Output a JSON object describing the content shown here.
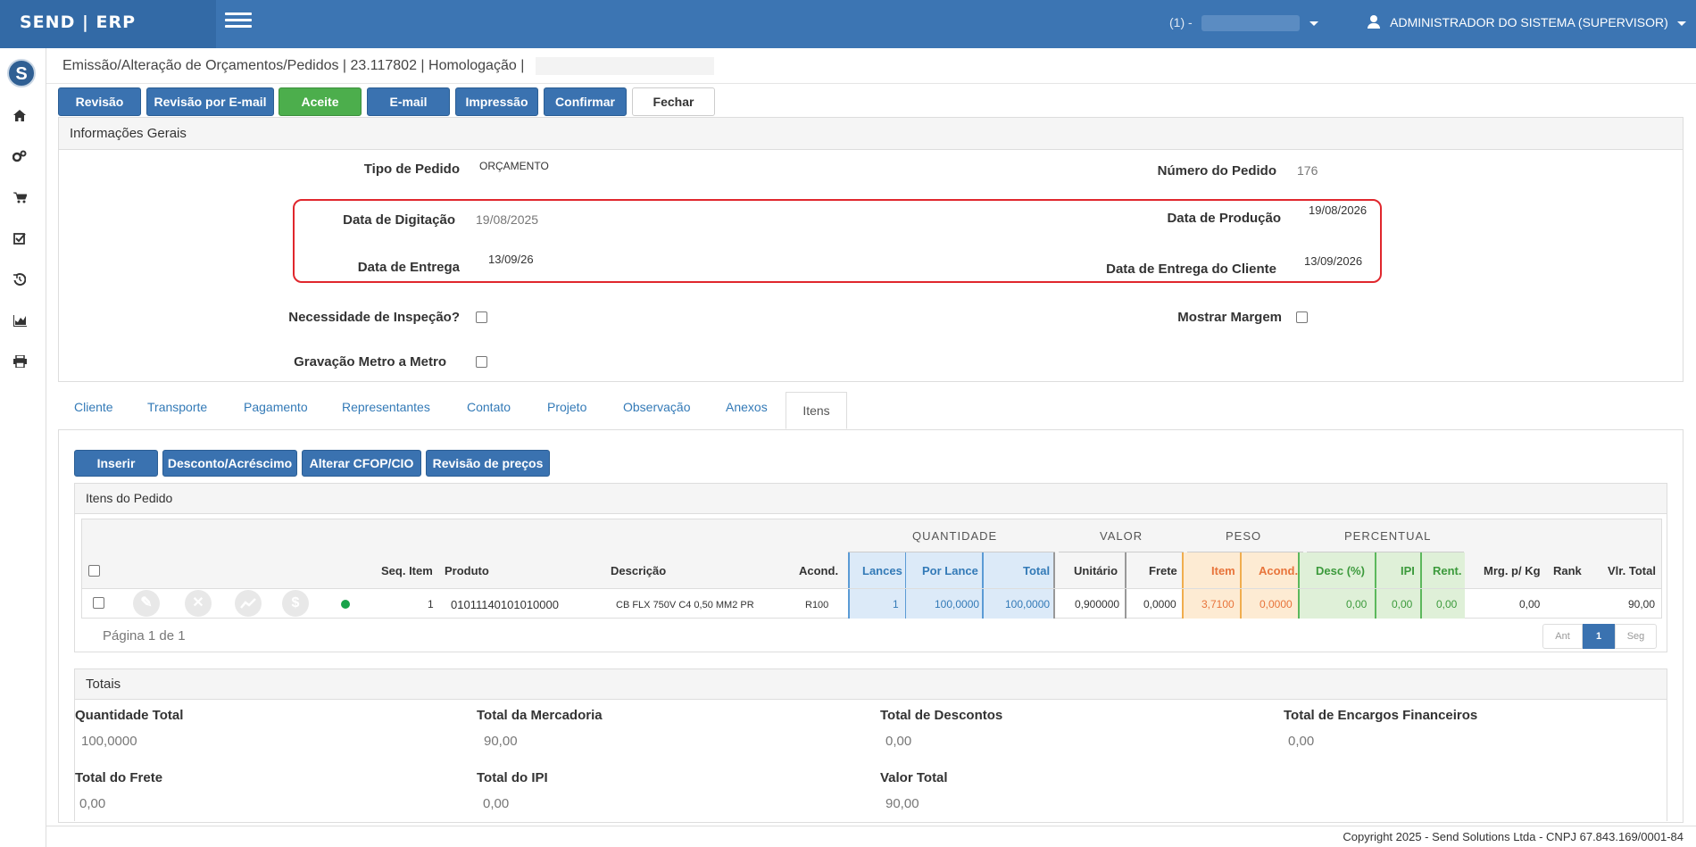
{
  "app": {
    "brand": "SEND | ERP"
  },
  "topbar": {
    "company": "(1) -",
    "user": "ADMINISTRADOR DO SISTEMA (SUPERVISOR)"
  },
  "sidebar": {
    "logo": "S",
    "items": [
      "home-icon",
      "cogs-icon",
      "cart-icon",
      "check-square-icon",
      "history-icon",
      "chart-icon",
      "print-icon"
    ]
  },
  "page": {
    "title": "Emissão/Alteração de Orçamentos/Pedidos | 23.117802 | Homologação |"
  },
  "toolbar": {
    "revisao": "Revisão",
    "revisao_email": "Revisão por E-mail",
    "aceite": "Aceite",
    "email": "E-mail",
    "impressao": "Impressão",
    "confirmar": "Confirmar",
    "fechar": "Fechar"
  },
  "info": {
    "heading": "Informações Gerais",
    "tipo_pedido_label": "Tipo de Pedido",
    "tipo_pedido": "ORÇAMENTO",
    "numero_pedido_label": "Número do Pedido",
    "numero_pedido": "176",
    "data_digitacao_label": "Data de Digitação",
    "data_digitacao": "19/08/2025",
    "data_producao_label": "Data de Produção",
    "data_producao": "19/08/2026",
    "data_entrega_label": "Data de Entrega",
    "data_entrega": "13/09/26",
    "data_entrega_cliente_label": "Data de Entrega do Cliente",
    "data_entrega_cliente": "13/09/2026",
    "inspecao_label": "Necessidade de Inspeção?",
    "margem_label": "Mostrar Margem",
    "gravacao_label": "Gravação Metro a Metro"
  },
  "tabs": [
    "Cliente",
    "Transporte",
    "Pagamento",
    "Representantes",
    "Contato",
    "Projeto",
    "Observação",
    "Anexos",
    "Itens"
  ],
  "items_toolbar": {
    "inserir": "Inserir",
    "desconto": "Desconto/Acréscimo",
    "alterar_cfop": "Alterar CFOP/CIO",
    "revisao_precos": "Revisão de preços"
  },
  "grid": {
    "heading": "Itens do Pedido",
    "groups": {
      "quantidade": "QUANTIDADE",
      "valor": "VALOR",
      "peso": "PESO",
      "percentual": "PERCENTUAL"
    },
    "columns": {
      "seq": "Seq. Item",
      "produto": "Produto",
      "descricao": "Descrição",
      "acond": "Acond.",
      "lances": "Lances",
      "por_lance": "Por Lance",
      "total": "Total",
      "unitario": "Unitário",
      "frete": "Frete",
      "peso_item": "Item",
      "peso_acond": "Acond.",
      "desc": "Desc (%)",
      "ipi": "IPI",
      "rent": "Rent.",
      "mrg": "Mrg. p/ Kg",
      "rank": "Rank",
      "vlr_total": "Vlr. Total"
    },
    "rows": [
      {
        "seq": "1",
        "produto": "01011140101010000",
        "descricao": "CB FLX 750V C4 0,50 MM2 PR",
        "acond": "R100",
        "lances": "1",
        "por_lance": "100,0000",
        "total": "100,0000",
        "unitario": "0,900000",
        "frete": "0,0000",
        "peso_item": "3,7100",
        "peso_acond": "0,0000",
        "desc": "0,00",
        "ipi": "0,00",
        "rent": "0,00",
        "mrg": "0,00",
        "rank": "",
        "vlr_total": "90,00"
      }
    ],
    "pager_text": "Página 1 de 1",
    "pager": {
      "prev": "Ant",
      "current": "1",
      "next": "Seg"
    }
  },
  "totais": {
    "heading": "Totais",
    "quantidade_total_label": "Quantidade Total",
    "quantidade_total": "100,0000",
    "mercadoria_label": "Total da Mercadoria",
    "mercadoria": "90,00",
    "descontos_label": "Total de Descontos",
    "descontos": "0,00",
    "encargos_label": "Total de Encargos Financeiros",
    "encargos": "0,00",
    "frete_label": "Total do Frete",
    "frete": "0,00",
    "ipi_label": "Total do IPI",
    "ipi": "0,00",
    "valor_total_label": "Valor Total",
    "valor_total": "90,00"
  },
  "footer": {
    "text": "Copyright 2025 - Send Solutions Ltda - CNPJ 67.843.169/0001-84"
  },
  "colors": {
    "primary": "#3a72b0",
    "green": "#4cae4c",
    "highlight": "#e0272d"
  }
}
